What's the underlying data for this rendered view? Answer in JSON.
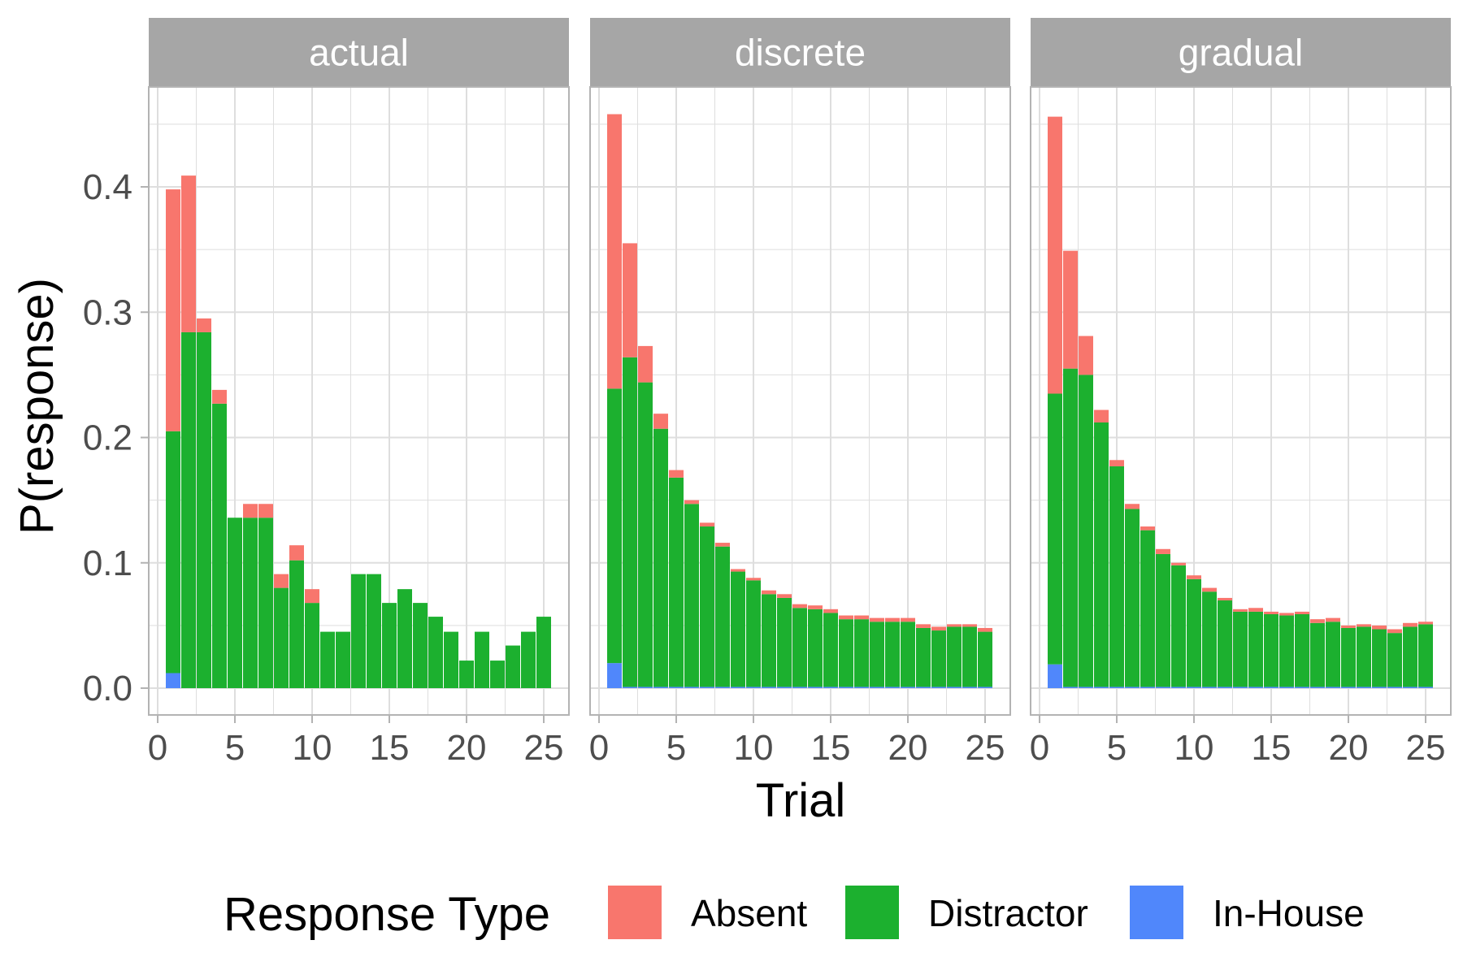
{
  "chart_data": {
    "type": "bar",
    "stacked": true,
    "xlabel": "Trial",
    "ylabel": "P(response)",
    "xlim": [
      0,
      26
    ],
    "ylim": [
      0,
      0.46
    ],
    "x_ticks": [
      0,
      5,
      10,
      15,
      20,
      25
    ],
    "y_ticks": [
      0.0,
      0.1,
      0.2,
      0.3,
      0.4
    ],
    "y_tick_labels": [
      "0.0",
      "0.1",
      "0.2",
      "0.3",
      "0.4"
    ],
    "grid": true,
    "legend": {
      "title": "Response Type",
      "position": "bottom",
      "items": [
        {
          "name": "Absent",
          "color": "#F8766D"
        },
        {
          "name": "Distractor",
          "color": "#1CB02F"
        },
        {
          "name": "In-House",
          "color": "#5087FB"
        }
      ]
    },
    "colors": {
      "panel_strip": "#A6A6A6",
      "strip_text": "#FFFFFF",
      "panel_border": "#B3B3B3",
      "grid": "#DEDEDE",
      "tick_text": "#4D4D4D"
    },
    "panels": [
      {
        "name": "actual",
        "x": [
          1,
          2,
          3,
          4,
          5,
          6,
          7,
          8,
          9,
          10,
          11,
          12,
          13,
          14,
          15,
          16,
          17,
          18,
          19,
          20,
          21,
          22,
          23,
          24,
          25
        ],
        "series": [
          {
            "name": "In-House",
            "values": [
              0.012,
              0,
              0,
              0,
              0,
              0,
              0,
              0,
              0,
              0,
              0,
              0,
              0,
              0,
              0,
              0,
              0,
              0,
              0,
              0,
              0,
              0,
              0,
              0,
              0
            ]
          },
          {
            "name": "Distractor",
            "values": [
              0.193,
              0.284,
              0.284,
              0.227,
              0.136,
              0.136,
              0.136,
              0.08,
              0.102,
              0.068,
              0.045,
              0.045,
              0.091,
              0.091,
              0.068,
              0.079,
              0.068,
              0.057,
              0.045,
              0.022,
              0.045,
              0.022,
              0.034,
              0.045,
              0.057
            ]
          },
          {
            "name": "Absent",
            "values": [
              0.193,
              0.125,
              0.011,
              0.011,
              0,
              0.011,
              0.011,
              0.011,
              0.012,
              0.011,
              0,
              0,
              0,
              0,
              0,
              0,
              0,
              0,
              0,
              0,
              0,
              0,
              0,
              0,
              0
            ]
          }
        ]
      },
      {
        "name": "discrete",
        "x": [
          1,
          2,
          3,
          4,
          5,
          6,
          7,
          8,
          9,
          10,
          11,
          12,
          13,
          14,
          15,
          16,
          17,
          18,
          19,
          20,
          21,
          22,
          23,
          24,
          25
        ],
        "series": [
          {
            "name": "In-House",
            "values": [
              0.02,
              0.001,
              0.001,
              0.001,
              0.001,
              0.001,
              0.001,
              0.001,
              0.001,
              0.001,
              0.001,
              0.001,
              0.001,
              0.001,
              0.001,
              0.001,
              0.001,
              0.001,
              0.001,
              0.001,
              0.001,
              0.001,
              0.001,
              0.001,
              0.001
            ]
          },
          {
            "name": "Distractor",
            "values": [
              0.219,
              0.263,
              0.243,
              0.206,
              0.167,
              0.146,
              0.128,
              0.112,
              0.092,
              0.085,
              0.074,
              0.071,
              0.063,
              0.062,
              0.059,
              0.054,
              0.054,
              0.052,
              0.052,
              0.052,
              0.047,
              0.045,
              0.048,
              0.048,
              0.044
            ]
          },
          {
            "name": "Absent",
            "values": [
              0.219,
              0.091,
              0.029,
              0.012,
              0.006,
              0.003,
              0.003,
              0.003,
              0.002,
              0.002,
              0.003,
              0.003,
              0.003,
              0.003,
              0.003,
              0.003,
              0.003,
              0.003,
              0.003,
              0.003,
              0.003,
              0.003,
              0.002,
              0.002,
              0.003
            ]
          }
        ]
      },
      {
        "name": "gradual",
        "x": [
          1,
          2,
          3,
          4,
          5,
          6,
          7,
          8,
          9,
          10,
          11,
          12,
          13,
          14,
          15,
          16,
          17,
          18,
          19,
          20,
          21,
          22,
          23,
          24,
          25
        ],
        "series": [
          {
            "name": "In-House",
            "values": [
              0.019,
              0.001,
              0.001,
              0.001,
              0.001,
              0.001,
              0.001,
              0.001,
              0.001,
              0.001,
              0.001,
              0.001,
              0.001,
              0.001,
              0.001,
              0.001,
              0.001,
              0.001,
              0.001,
              0.001,
              0.001,
              0.001,
              0.001,
              0.001,
              0.001
            ]
          },
          {
            "name": "Distractor",
            "values": [
              0.216,
              0.254,
              0.249,
              0.211,
              0.176,
              0.142,
              0.125,
              0.106,
              0.097,
              0.086,
              0.076,
              0.069,
              0.06,
              0.06,
              0.058,
              0.057,
              0.058,
              0.051,
              0.052,
              0.047,
              0.048,
              0.046,
              0.043,
              0.048,
              0.05
            ]
          },
          {
            "name": "Absent",
            "values": [
              0.221,
              0.094,
              0.031,
              0.01,
              0.005,
              0.004,
              0.003,
              0.004,
              0.002,
              0.003,
              0.003,
              0.002,
              0.002,
              0.003,
              0.002,
              0.002,
              0.002,
              0.003,
              0.003,
              0.002,
              0.002,
              0.003,
              0.003,
              0.003,
              0.002
            ]
          }
        ]
      }
    ]
  }
}
